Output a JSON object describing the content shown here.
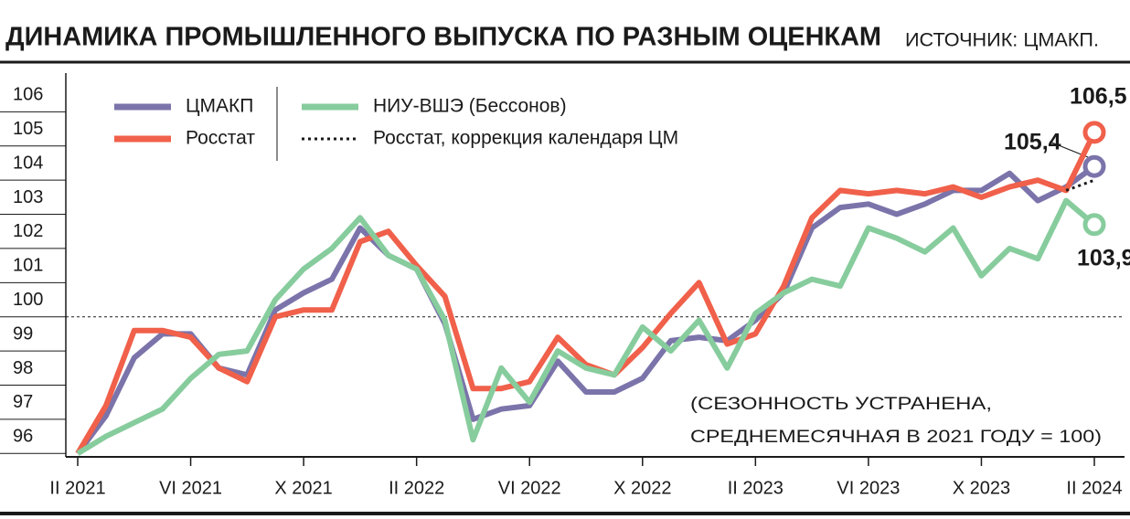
{
  "chart_data": {
    "type": "line",
    "title": "ДИНАМИКА ПРОМЫШЛЕННОГО ВЫПУСКА ПО РАЗНЫМ ОЦЕНКАМ",
    "source": "ИСТОЧНИК: ЦМАКП.",
    "categories": [
      "II 2021",
      null,
      null,
      null,
      "VI 2021",
      null,
      null,
      null,
      "X 2021",
      null,
      null,
      null,
      "II 2022",
      null,
      null,
      null,
      "VI 2022",
      null,
      null,
      null,
      "X 2022",
      null,
      null,
      null,
      "II 2023",
      null,
      null,
      null,
      "VI 2023",
      null,
      null,
      null,
      "X 2023",
      null,
      null,
      null,
      "II 2024"
    ],
    "ylim": [
      95.9,
      107
    ],
    "yticks": [
      96,
      97,
      98,
      99,
      100,
      101,
      102,
      103,
      104,
      105,
      106
    ],
    "series": [
      {
        "name": "ЦМАКП",
        "color": "#7b74aa",
        "values": [
          96.0,
          97.1,
          98.8,
          99.5,
          99.5,
          98.5,
          98.3,
          100.2,
          100.7,
          101.1,
          102.6,
          101.8,
          101.4,
          99.8,
          97.0,
          97.3,
          97.4,
          98.7,
          97.8,
          97.8,
          98.2,
          99.3,
          99.4,
          99.3,
          99.9,
          100.7,
          102.6,
          103.2,
          103.3,
          103.0,
          103.3,
          103.7,
          103.7,
          104.2,
          103.4,
          103.8,
          104.4
        ]
      },
      {
        "name": "Росстат",
        "color": "#f0604a",
        "values": [
          96.0,
          97.4,
          99.6,
          99.6,
          99.4,
          98.5,
          98.1,
          100.0,
          100.2,
          100.2,
          102.2,
          102.5,
          101.5,
          100.6,
          97.9,
          97.9,
          98.1,
          99.4,
          98.6,
          98.3,
          99.1,
          100.1,
          101.0,
          99.2,
          99.5,
          100.9,
          102.9,
          103.7,
          103.6,
          103.7,
          103.6,
          103.8,
          103.5,
          103.8,
          104.0,
          103.7,
          105.4
        ]
      },
      {
        "name": "НИУ-ВШЭ (Бессонов)",
        "color": "#87cc9d",
        "values": [
          96.0,
          96.5,
          96.9,
          97.3,
          98.2,
          98.9,
          99.0,
          100.5,
          101.4,
          102.0,
          102.9,
          101.8,
          101.4,
          99.9,
          96.4,
          98.5,
          97.5,
          99.0,
          98.5,
          98.3,
          99.7,
          99.0,
          99.9,
          98.5,
          100.1,
          100.7,
          101.1,
          100.9,
          102.6,
          102.3,
          101.9,
          102.6,
          101.2,
          102.0,
          101.7,
          103.4,
          102.7
        ]
      },
      {
        "name": "Росстат, коррекция календаря ЦМ",
        "color": "#1a1a1a",
        "style": "dotted",
        "values": [
          null,
          null,
          null,
          null,
          null,
          null,
          null,
          null,
          null,
          null,
          null,
          null,
          null,
          null,
          null,
          null,
          null,
          null,
          null,
          null,
          null,
          null,
          null,
          null,
          null,
          null,
          null,
          null,
          null,
          null,
          null,
          null,
          null,
          null,
          null,
          103.7,
          104.0
        ]
      }
    ],
    "annotations": [
      "106,5",
      "105,4",
      "103,9"
    ],
    "note": [
      "(СЕЗОННОСТЬ УСТРАНЕНА,",
      "СРЕДНЕМЕСЯЧНАЯ В 2021 ГОДУ = 100)"
    ]
  }
}
